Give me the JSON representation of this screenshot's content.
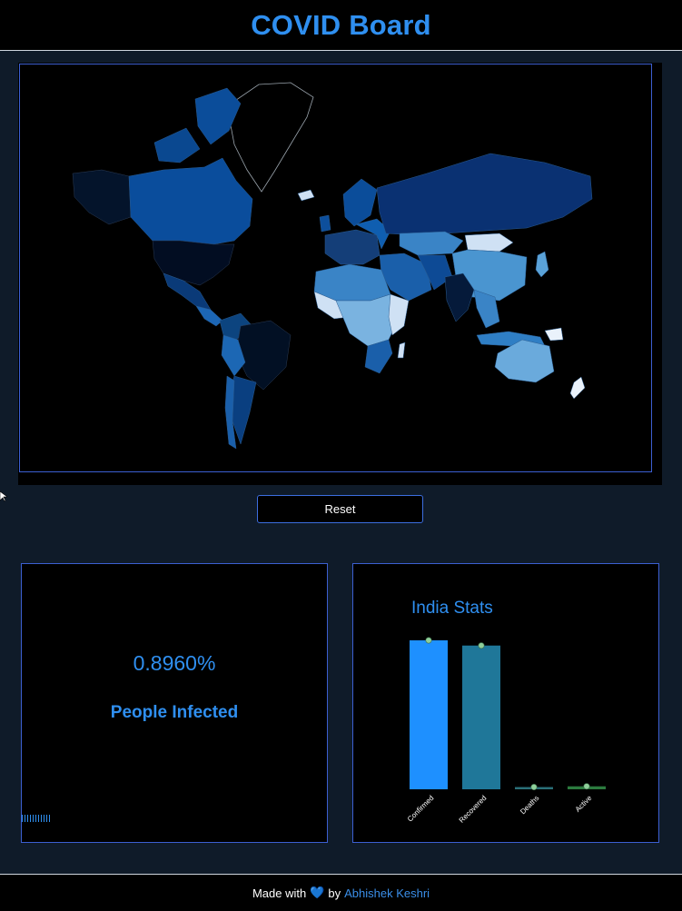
{
  "header": {
    "title": "COVID Board"
  },
  "controls": {
    "reset_label": "Reset"
  },
  "infection": {
    "percent": "0.8960%",
    "label": "People Infected"
  },
  "india": {
    "title": "India Stats"
  },
  "chart_data": {
    "type": "bar",
    "title": "India Stats",
    "categories": [
      "Confirmed",
      "Recovered",
      "Deaths",
      "Active"
    ],
    "values": [
      100,
      96.5,
      1.5,
      2.0
    ],
    "colors": [
      "#1e90ff",
      "#1f7799",
      "#2a6f78",
      "#2b7a3e"
    ],
    "ylim": [
      0,
      100
    ],
    "grid": false
  },
  "footer": {
    "made_with": "Made with",
    "heart_icon": "heart-icon",
    "by": "by",
    "author": "Abhishek Keshri"
  }
}
